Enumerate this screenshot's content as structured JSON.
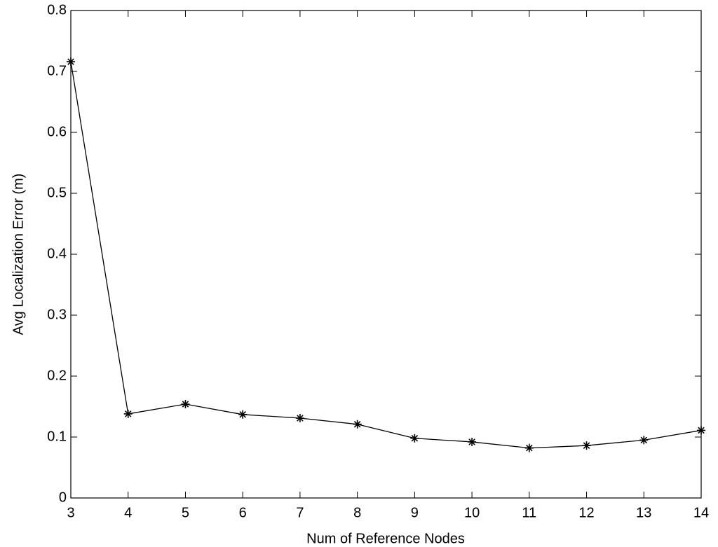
{
  "chart_data": {
    "type": "line",
    "xlabel": "Num of Reference Nodes",
    "ylabel": "Avg Localization Error (m)",
    "x": [
      3,
      4,
      5,
      6,
      7,
      8,
      9,
      10,
      11,
      12,
      13,
      14
    ],
    "series": [
      {
        "color": "#000000",
        "values": [
          0.716,
          0.138,
          0.154,
          0.137,
          0.131,
          0.121,
          0.098,
          0.092,
          0.082,
          0.086,
          0.095,
          0.111
        ]
      }
    ],
    "xlim": [
      3,
      14
    ],
    "xticks": [
      3,
      4,
      5,
      6,
      7,
      8,
      9,
      10,
      11,
      12,
      13,
      14
    ],
    "ylim": [
      0,
      0.8
    ],
    "yticks": [
      0,
      0.1,
      0.2,
      0.3,
      0.4,
      0.5,
      0.6,
      0.7,
      0.8
    ],
    "grid": false
  }
}
